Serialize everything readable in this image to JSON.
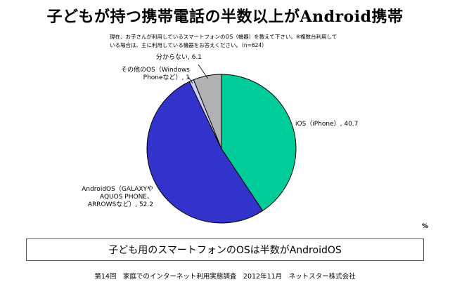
{
  "title": "子どもが持つ携帯電話の半数以上がAndroid携帯",
  "question": "現在、お子さんが利用しているスマートフォンのOS（機器）を教えて下さい。※複数台利用している場合は、主に利用している機器をお答えください。（n=624）",
  "unit": "%",
  "summary": "子ども用のスマートフォンのOSは半数がAndroidOS",
  "footer": "第14回　家庭でのインターネット利用実態調査　2012年11月　ネットスター株式会社",
  "chart_data": {
    "type": "pie",
    "title": "子どもが持つ携帯電話の半数以上がAndroid携帯",
    "slices": [
      {
        "label": "iOS（iPhone）, 40.7",
        "name": "iOS（iPhone）",
        "value": 40.7,
        "color": "#00cc99"
      },
      {
        "label": "AndroidOS（GALAXYやAQUOS PHONE、ARROWSなど）, 52.2",
        "name": "AndroidOS（GALAXYやAQUOS PHONE、ARROWSなど）",
        "value": 52.2,
        "color": "#3333cc"
      },
      {
        "label": "その他のOS（Windows Phoneなど）, 1",
        "name": "その他のOS（Windows Phoneなど）",
        "value": 1,
        "color": "#ccccff"
      },
      {
        "label": "分からない, 6.1",
        "name": "分からない",
        "value": 6.1,
        "color": "#b2b2b2"
      }
    ],
    "labels_display": {
      "ios": [
        "iOS（iPhone）, 40.7"
      ],
      "android": [
        "AndroidOS（GALAXYや",
        "AQUOS PHONE、",
        "ARROWSなど）, 52.2"
      ],
      "other": [
        "その他のOS（Windows",
        "Phoneなど）, 1"
      ],
      "unknown": [
        "分からない, 6.1"
      ]
    },
    "unit": "%"
  }
}
